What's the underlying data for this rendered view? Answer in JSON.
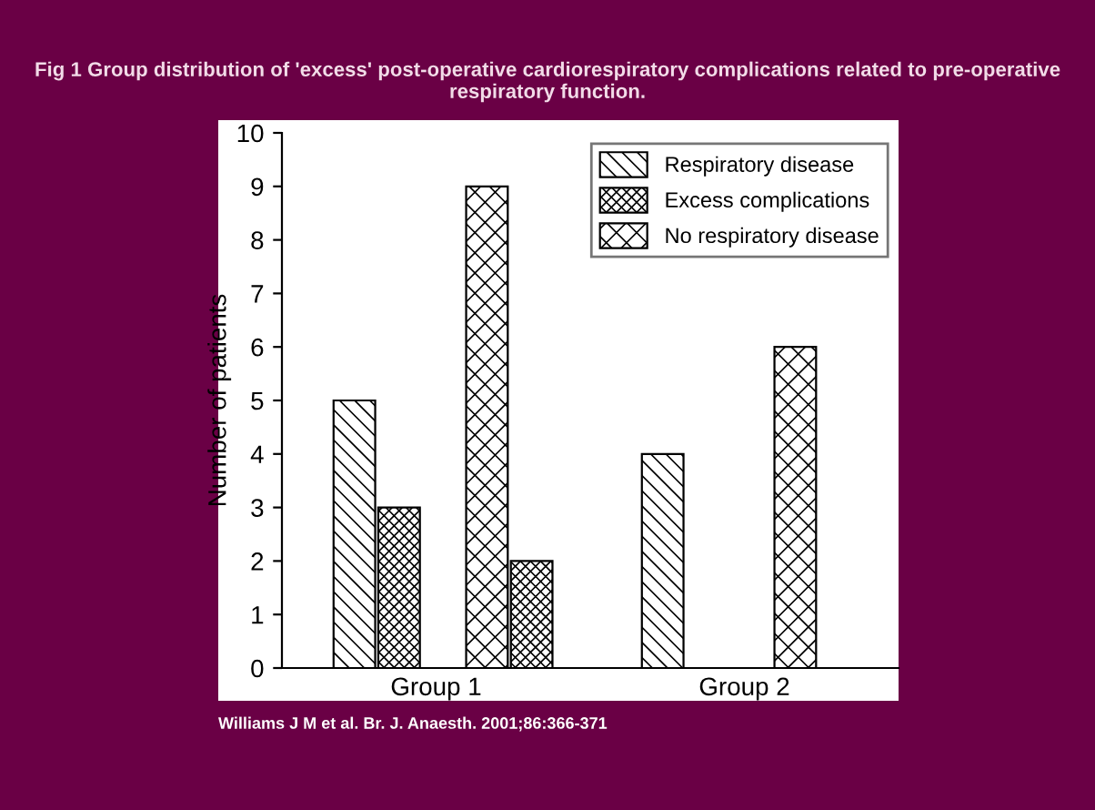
{
  "chart_data": {
    "type": "bar",
    "title": "Fig 1 Group distribution of 'excess' post-operative cardiorespiratory complications related to pre-operative respiratory function.",
    "ylabel": "Number of patients",
    "categories": [
      "Group 1",
      "Group 2"
    ],
    "series": [
      {
        "name": "Respiratory disease",
        "color": "#000000",
        "values": [
          5,
          4
        ]
      },
      {
        "name": "Excess complications",
        "color": "#000000",
        "values": [
          3,
          null
        ]
      },
      {
        "name": "No respiratory disease",
        "color": "#000000",
        "values": [
          9,
          6
        ]
      },
      {
        "color": "#000000",
        "values": [
          2,
          null
        ]
      }
    ],
    "ylim": [
      0,
      10
    ],
    "yticks": [
      0,
      1,
      2,
      3,
      4,
      5,
      6,
      7,
      8,
      9,
      10
    ],
    "grid": false,
    "legend": "top right",
    "annotations": [
      "Williams J M et al. Br. J. Anaesth. 2001;86:366-371"
    ]
  }
}
